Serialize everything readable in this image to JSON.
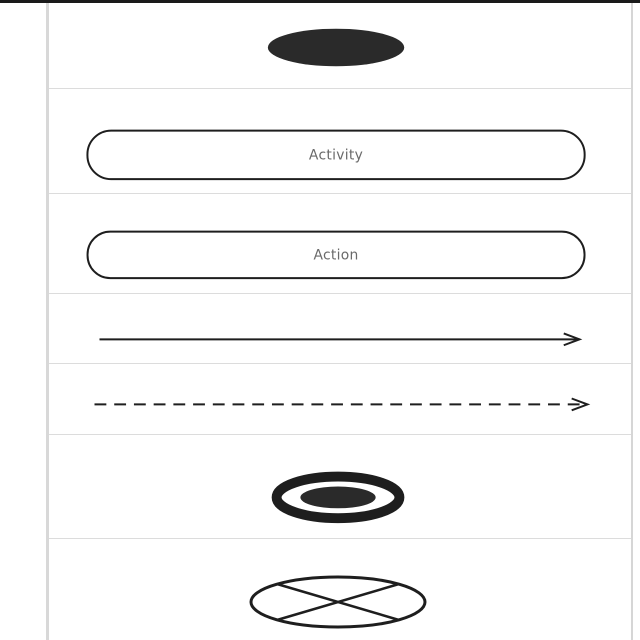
{
  "palette": {
    "items": [
      {
        "kind": "initial-node"
      },
      {
        "kind": "activity",
        "label": "Activity"
      },
      {
        "kind": "action",
        "label": "Action"
      },
      {
        "kind": "control-flow"
      },
      {
        "kind": "object-flow"
      },
      {
        "kind": "activity-final-node"
      },
      {
        "kind": "flow-final-node"
      }
    ]
  },
  "colors": {
    "stroke": "#1e1e1e",
    "fill_dark": "#2a2a2a",
    "label": "#6a6a6a",
    "divider": "#dcdcdc"
  }
}
